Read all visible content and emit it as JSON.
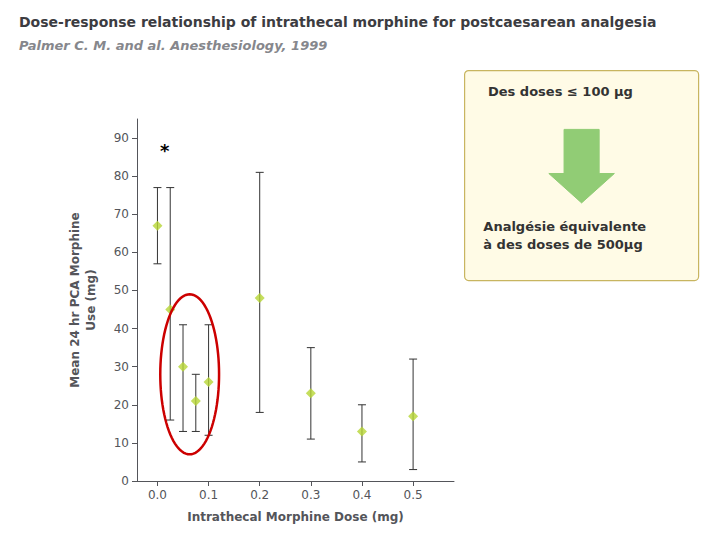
{
  "chart_data": {
    "type": "scatter",
    "title": "Dose-response relationship of intrathecal morphine for postcaesarean analgesia",
    "subtitle": "Palmer C. M. and al. Anesthesiology, 1999",
    "xlabel": "Intrathecal Morphine Dose (mg)",
    "ylabel": "Mean 24 hr PCA Morphine\nUse (mg)",
    "marker": "diamond",
    "x": [
      0.0,
      0.025,
      0.05,
      0.075,
      0.1,
      0.2,
      0.3,
      0.4,
      0.5
    ],
    "values": [
      67,
      45,
      30,
      21,
      26,
      48,
      23,
      13,
      17
    ],
    "error_low": [
      10,
      29,
      17,
      8,
      14,
      30,
      12,
      8,
      14
    ],
    "error_high": [
      10,
      32,
      11,
      7,
      15,
      33,
      12,
      7,
      15
    ],
    "xlim": [
      -0.04,
      0.58
    ],
    "ylim": [
      0,
      95
    ],
    "xticks": [
      {
        "value": 0.0,
        "label": "0.0"
      },
      0.1,
      0.2,
      0.3,
      0.4,
      0.5
    ],
    "yticks": [
      0,
      10,
      20,
      30,
      40,
      50,
      60,
      70,
      80,
      90
    ],
    "grid": false,
    "ellipse": {
      "x": 0.063,
      "y": 28,
      "width": 0.115,
      "height": 42,
      "color": "#cc0000"
    },
    "annotations": [
      {
        "text": "*",
        "x": 0.005,
        "y": 89
      },
      {
        "text": "Des doses ≤ 100 μg"
      },
      {
        "text": "Analgésie équivalente\nà des doses de 500μg"
      }
    ]
  }
}
